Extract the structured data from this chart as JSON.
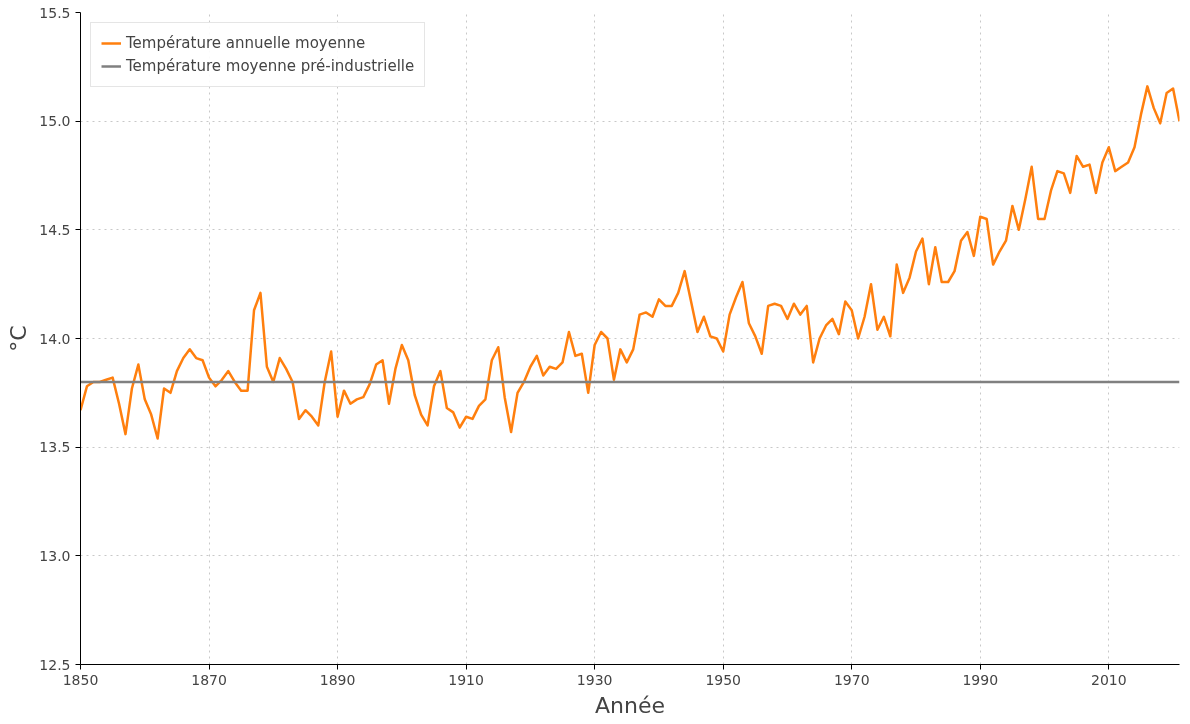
{
  "chart_data": {
    "type": "line",
    "xlabel": "Année",
    "ylabel": "°C",
    "x": [
      1850,
      1851,
      1852,
      1853,
      1854,
      1855,
      1856,
      1857,
      1858,
      1859,
      1860,
      1861,
      1862,
      1863,
      1864,
      1865,
      1866,
      1867,
      1868,
      1869,
      1870,
      1871,
      1872,
      1873,
      1874,
      1875,
      1876,
      1877,
      1878,
      1879,
      1880,
      1881,
      1882,
      1883,
      1884,
      1885,
      1886,
      1887,
      1888,
      1889,
      1890,
      1891,
      1892,
      1893,
      1894,
      1895,
      1896,
      1897,
      1898,
      1899,
      1900,
      1901,
      1902,
      1903,
      1904,
      1905,
      1906,
      1907,
      1908,
      1909,
      1910,
      1911,
      1912,
      1913,
      1914,
      1915,
      1916,
      1917,
      1918,
      1919,
      1920,
      1921,
      1922,
      1923,
      1924,
      1925,
      1926,
      1927,
      1928,
      1929,
      1930,
      1931,
      1932,
      1933,
      1934,
      1935,
      1936,
      1937,
      1938,
      1939,
      1940,
      1941,
      1942,
      1943,
      1944,
      1945,
      1946,
      1947,
      1948,
      1949,
      1950,
      1951,
      1952,
      1953,
      1954,
      1955,
      1956,
      1957,
      1958,
      1959,
      1960,
      1961,
      1962,
      1963,
      1964,
      1965,
      1966,
      1967,
      1968,
      1969,
      1970,
      1971,
      1972,
      1973,
      1974,
      1975,
      1976,
      1977,
      1978,
      1979,
      1980,
      1981,
      1982,
      1983,
      1984,
      1985,
      1986,
      1987,
      1988,
      1989,
      1990,
      1991,
      1992,
      1993,
      1994,
      1995,
      1996,
      1997,
      1998,
      1999,
      2000,
      2001,
      2002,
      2003,
      2004,
      2005,
      2006,
      2007,
      2008,
      2009,
      2010,
      2011,
      2012,
      2013,
      2014,
      2015,
      2016,
      2017,
      2018,
      2019,
      2020,
      2021
    ],
    "series": [
      {
        "name": "Température annuelle moyenne",
        "color": "#ff7f0e",
        "values": [
          13.67,
          13.78,
          13.8,
          13.8,
          13.81,
          13.82,
          13.7,
          13.56,
          13.77,
          13.88,
          13.72,
          13.65,
          13.54,
          13.77,
          13.75,
          13.85,
          13.91,
          13.95,
          13.91,
          13.9,
          13.82,
          13.78,
          13.81,
          13.85,
          13.8,
          13.76,
          13.76,
          14.13,
          14.21,
          13.87,
          13.8,
          13.91,
          13.86,
          13.8,
          13.63,
          13.67,
          13.64,
          13.6,
          13.8,
          13.94,
          13.64,
          13.76,
          13.7,
          13.72,
          13.73,
          13.79,
          13.88,
          13.9,
          13.7,
          13.86,
          13.97,
          13.9,
          13.74,
          13.65,
          13.6,
          13.78,
          13.85,
          13.68,
          13.66,
          13.59,
          13.64,
          13.63,
          13.69,
          13.72,
          13.9,
          13.96,
          13.73,
          13.57,
          13.75,
          13.8,
          13.87,
          13.92,
          13.83,
          13.87,
          13.86,
          13.89,
          14.03,
          13.92,
          13.93,
          13.75,
          13.97,
          14.03,
          14.0,
          13.81,
          13.95,
          13.89,
          13.95,
          14.11,
          14.12,
          14.1,
          14.18,
          14.15,
          14.15,
          14.21,
          14.31,
          14.17,
          14.03,
          14.1,
          14.01,
          14.0,
          13.94,
          14.11,
          14.19,
          14.26,
          14.07,
          14.01,
          13.93,
          14.15,
          14.16,
          14.15,
          14.09,
          14.16,
          14.11,
          14.15,
          13.89,
          14.0,
          14.06,
          14.09,
          14.02,
          14.17,
          14.13,
          14.0,
          14.1,
          14.25,
          14.04,
          14.1,
          14.01,
          14.34,
          14.21,
          14.28,
          14.4,
          14.46,
          14.25,
          14.42,
          14.26,
          14.26,
          14.31,
          14.45,
          14.49,
          14.38,
          14.56,
          14.55,
          14.34,
          14.4,
          14.45,
          14.61,
          14.5,
          14.64,
          14.79,
          14.55,
          14.55,
          14.68,
          14.77,
          14.76,
          14.67,
          14.84,
          14.79,
          14.8,
          14.67,
          14.81,
          14.88,
          14.77,
          14.79,
          14.81,
          14.88,
          15.03,
          15.16,
          15.06,
          14.99,
          15.13,
          15.15,
          15.0
        ]
      }
    ],
    "ref_lines": [
      {
        "axis": "y",
        "value": 13.8,
        "label": "Température moyenne pré-industrielle",
        "color": "#808080",
        "line_style": "solid"
      }
    ],
    "xlim": [
      1850,
      2021
    ],
    "xticks": [
      1850,
      1870,
      1890,
      1910,
      1930,
      1950,
      1970,
      1990,
      2010
    ],
    "ylim": [
      12.5,
      15.5
    ],
    "yticks": [
      12.5,
      {
        "value": 13,
        "label": "13.0"
      },
      13.5,
      {
        "value": 14,
        "label": "14.0"
      },
      14.5,
      {
        "value": 15,
        "label": "15.0"
      },
      15.5
    ],
    "grid": true,
    "legend": "top left",
    "line_style": "solid",
    "marker": "none"
  }
}
